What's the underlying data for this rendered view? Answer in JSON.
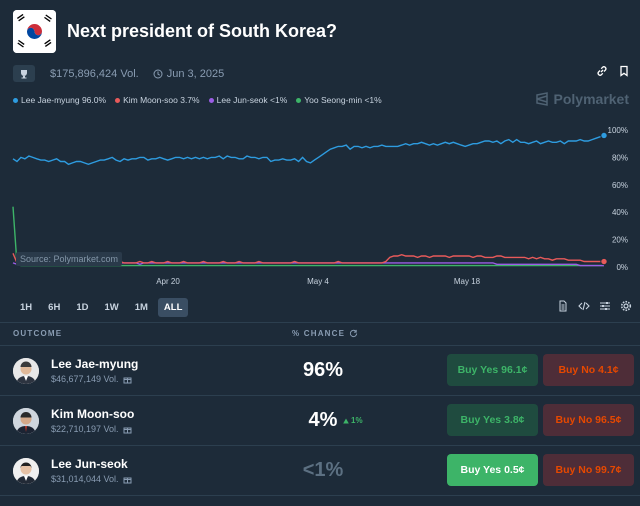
{
  "market": {
    "title": "Next president of South Korea?",
    "volume": "$175,896,424 Vol.",
    "date": "Jun 3, 2025",
    "brand": "Polymarket"
  },
  "legend": [
    {
      "label": "Lee Jae-myung 96.0%",
      "color": "#2e9ce0"
    },
    {
      "label": "Kim Moon-soo 3.7%",
      "color": "#e85a5a"
    },
    {
      "label": "Lee Jun-seok <1%",
      "color": "#9b5de5"
    },
    {
      "label": "Yoo Seong-min <1%",
      "color": "#3db468"
    }
  ],
  "chart": {
    "source": "Source: Polymarket.com",
    "y_ticks": [
      "100%",
      "80%",
      "60%",
      "40%",
      "20%",
      "0%"
    ],
    "x_ticks": [
      "Apr 20",
      "May 4",
      "May 18"
    ]
  },
  "chart_data": {
    "type": "line",
    "x": [
      0,
      4,
      8,
      12,
      16,
      20,
      24,
      28,
      32,
      36,
      40,
      44,
      48,
      52,
      56,
      60,
      64,
      68,
      72,
      76,
      80,
      84,
      88,
      92,
      96,
      100,
      104,
      108,
      112,
      116,
      120,
      124,
      128,
      132,
      136,
      140,
      144,
      148,
      152,
      156,
      160,
      164,
      168,
      172,
      176,
      180,
      184,
      188,
      192,
      196,
      200,
      204,
      208,
      212,
      216,
      220,
      224,
      228,
      232,
      236,
      240,
      244,
      248,
      252,
      256,
      260,
      264,
      268,
      272,
      276,
      280,
      284,
      288,
      292,
      296,
      300,
      304,
      308,
      312,
      316,
      320,
      324,
      328,
      332,
      336,
      340,
      344,
      348,
      352,
      356,
      360,
      364,
      368,
      372,
      376,
      380,
      384,
      388,
      392,
      396,
      400,
      404,
      408,
      412,
      416,
      420,
      424,
      428,
      432,
      436,
      440,
      444,
      448,
      452,
      456,
      460,
      464,
      468,
      472,
      476,
      480,
      484,
      488,
      492,
      496,
      500,
      504,
      508,
      512,
      516,
      520,
      524,
      528,
      532,
      536,
      540,
      544,
      548,
      552,
      556,
      560,
      564,
      568,
      572,
      576,
      580,
      584,
      588,
      592,
      596
    ],
    "series": [
      {
        "name": "Lee Jae-myung",
        "color": "#2e9ce0",
        "values": [
          79,
          77,
          80,
          79,
          81,
          80,
          79,
          78,
          78,
          77,
          78,
          79,
          77,
          77,
          75,
          76,
          77,
          77,
          76,
          75,
          76,
          77,
          78,
          78,
          79,
          80,
          78,
          77,
          79,
          78,
          79,
          79,
          80,
          80,
          78,
          79,
          79,
          80,
          79,
          78,
          79,
          80,
          80,
          79,
          80,
          79,
          80,
          79,
          80,
          79,
          80,
          80,
          81,
          79,
          81,
          80,
          80,
          79,
          79,
          81,
          80,
          80,
          79,
          80,
          80,
          77,
          78,
          78,
          79,
          78,
          78,
          79,
          77,
          80,
          77,
          76,
          78,
          80,
          82,
          84,
          86,
          87,
          88,
          88,
          89,
          86,
          88,
          88,
          87,
          88,
          87,
          88,
          88,
          89,
          88,
          88,
          88,
          88,
          89,
          90,
          89,
          90,
          90,
          91,
          90,
          89,
          90,
          89,
          90,
          91,
          90,
          91,
          90,
          89,
          88,
          89,
          90,
          90,
          91,
          92,
          92,
          91,
          92,
          90,
          92,
          93,
          91,
          93,
          91,
          91,
          90,
          91,
          92,
          90,
          91,
          92,
          91,
          91,
          92,
          90,
          92,
          92,
          92,
          93,
          92,
          92,
          93,
          94,
          95,
          96
        ]
      },
      {
        "name": "Kim Moon-soo",
        "color": "#e85a5a",
        "values": [
          10,
          3,
          2,
          3,
          3,
          3,
          4,
          3,
          3,
          3,
          3,
          4,
          3,
          3,
          3,
          3,
          3,
          3,
          4,
          3,
          3,
          3,
          3,
          4,
          3,
          3,
          3,
          4,
          3,
          3,
          3,
          3,
          4,
          3,
          3,
          4,
          3,
          3,
          3,
          4,
          3,
          3,
          3,
          4,
          3,
          3,
          3,
          3,
          4,
          3,
          3,
          3,
          3,
          4,
          3,
          3,
          3,
          4,
          3,
          3,
          3,
          3,
          4,
          3,
          3,
          3,
          3,
          3,
          3,
          3,
          3,
          4,
          3,
          3,
          3,
          3,
          3,
          3,
          3,
          3,
          3,
          3,
          4,
          3,
          3,
          3,
          3,
          3,
          3,
          3,
          3,
          3,
          3,
          3,
          4,
          7,
          8,
          8,
          9,
          8,
          8,
          8,
          7,
          8,
          8,
          7,
          8,
          8,
          8,
          8,
          7,
          8,
          8,
          8,
          8,
          8,
          7,
          8,
          8,
          7,
          7,
          7,
          8,
          8,
          7,
          7,
          7,
          7,
          7,
          7,
          6,
          7,
          6,
          7,
          6,
          6,
          5,
          6,
          6,
          6,
          5,
          5,
          5,
          5,
          4,
          4,
          4,
          4,
          4,
          4
        ]
      },
      {
        "name": "Lee Jun-seok",
        "color": "#9b5de5",
        "values": [
          3,
          2,
          3,
          3,
          3,
          3,
          3,
          3,
          3,
          3,
          3,
          3,
          3,
          2,
          3,
          3,
          3,
          3,
          3,
          3,
          3,
          3,
          3,
          3,
          3,
          3,
          3,
          3,
          3,
          3,
          3,
          3,
          2,
          3,
          3,
          3,
          3,
          3,
          3,
          3,
          3,
          3,
          3,
          3,
          3,
          3,
          3,
          3,
          3,
          3,
          3,
          3,
          3,
          3,
          3,
          3,
          3,
          3,
          3,
          3,
          3,
          3,
          3,
          3,
          3,
          3,
          3,
          3,
          3,
          3,
          3,
          3,
          3,
          3,
          3,
          3,
          3,
          3,
          3,
          3,
          3,
          3,
          3,
          3,
          3,
          3,
          3,
          3,
          3,
          3,
          3,
          3,
          3,
          3,
          3,
          3,
          3,
          3,
          3,
          3,
          3,
          3,
          3,
          3,
          3,
          3,
          3,
          3,
          3,
          3,
          3,
          3,
          3,
          3,
          3,
          3,
          3,
          3,
          3,
          3,
          3,
          3,
          2,
          2,
          2,
          2,
          2,
          2,
          2,
          2,
          2,
          2,
          2,
          2,
          2,
          2,
          2,
          2,
          2,
          2,
          2,
          2,
          2,
          1,
          1,
          1,
          1,
          1,
          1,
          1
        ]
      },
      {
        "name": "Yoo Seong-min",
        "color": "#3db468",
        "values": [
          44,
          2,
          1,
          1,
          1,
          1,
          1,
          1,
          1,
          1,
          1,
          1,
          1,
          1,
          1,
          1,
          1,
          1,
          1,
          1,
          1,
          1,
          1,
          1,
          1,
          1,
          1,
          1,
          1,
          1,
          1,
          1,
          1,
          1,
          1,
          1,
          1,
          1,
          1,
          1,
          1,
          1,
          1,
          1,
          1,
          1,
          1,
          1,
          1,
          1,
          1,
          1,
          1,
          1,
          1,
          1,
          1,
          1,
          1,
          1,
          1,
          1,
          1,
          1,
          1,
          1,
          1,
          1,
          1,
          1,
          1,
          1,
          1,
          1,
          1,
          1,
          1,
          1,
          1,
          1,
          1,
          1,
          1,
          1,
          1,
          1,
          1,
          1,
          1,
          1,
          1,
          1,
          1,
          1,
          1,
          1,
          1,
          1,
          1,
          1,
          1,
          1,
          1,
          1,
          1,
          1,
          1,
          1,
          1,
          1,
          1,
          1,
          1,
          1,
          1,
          1,
          1,
          1,
          1,
          1,
          1,
          1,
          1,
          1,
          1,
          1,
          1,
          1,
          1,
          1,
          1,
          1,
          1,
          1,
          1,
          1,
          1,
          1,
          1,
          1,
          1,
          1,
          1,
          1,
          1,
          1,
          1,
          1,
          1,
          1
        ]
      }
    ],
    "ylim": [
      0,
      100
    ],
    "grid": false
  },
  "ranges": [
    "1H",
    "6H",
    "1D",
    "1W",
    "1M",
    "ALL"
  ],
  "active_range": "ALL",
  "table": {
    "col_outcome": "OUTCOME",
    "col_chance": "% CHANCE",
    "rows": [
      {
        "name": "Lee Jae-myung",
        "vol": "$46,677,149 Vol.",
        "chance": "96%",
        "change": "",
        "yes": "Buy Yes 96.1¢",
        "no": "Buy No 4.1¢"
      },
      {
        "name": "Kim Moon-soo",
        "vol": "$22,710,197 Vol.",
        "chance": "4%",
        "change": "1%",
        "yes": "Buy Yes 3.8¢",
        "no": "Buy No 96.5¢"
      },
      {
        "name": "Lee Jun-seok",
        "vol": "$31,014,044 Vol.",
        "chance": "<1%",
        "change": "",
        "yes": "Buy Yes 0.5¢",
        "no": "Buy No 99.7¢"
      }
    ]
  }
}
